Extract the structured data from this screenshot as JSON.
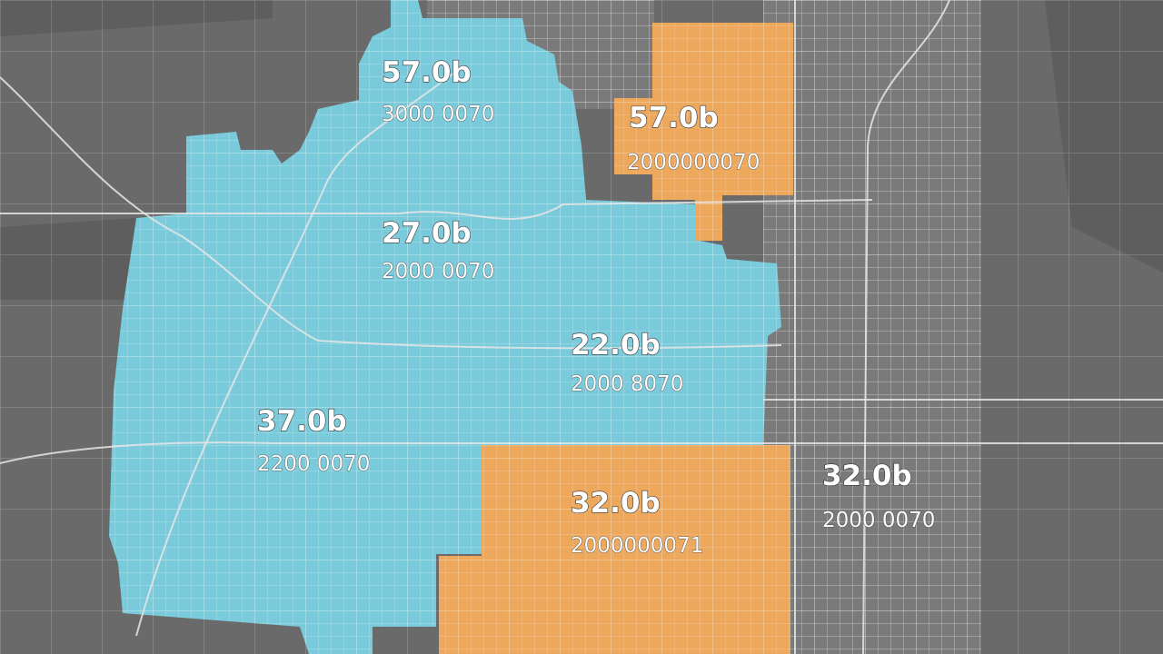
{
  "regions": [
    {
      "value": "57.0b",
      "subvalue": "3000 0070"
    },
    {
      "value": "57.0b",
      "subvalue": "2000000070"
    },
    {
      "value": "27.0b",
      "subvalue": "2000 0070"
    },
    {
      "value": "22.0b",
      "subvalue": "2000 8070"
    },
    {
      "value": "37.0b",
      "subvalue": "2200 0070"
    },
    {
      "value": "32.0b",
      "subvalue": "2000000071"
    },
    {
      "value": "32.0b",
      "subvalue": "2000 0070"
    }
  ]
}
